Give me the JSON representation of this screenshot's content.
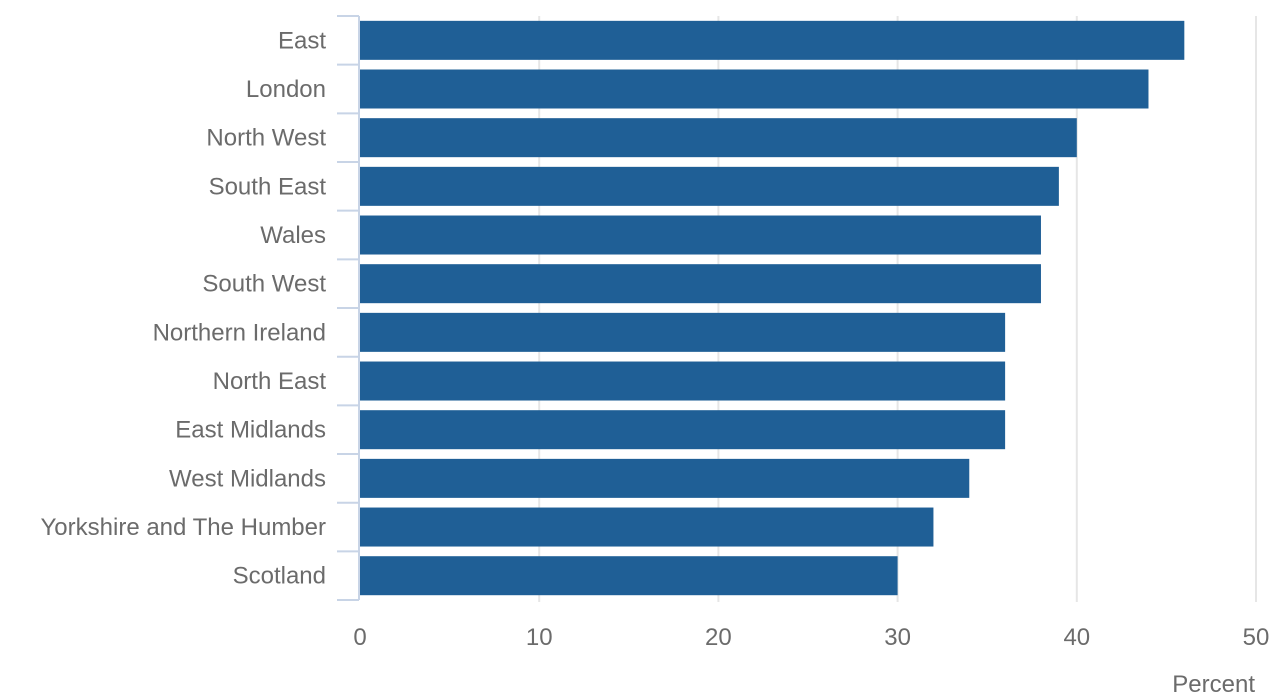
{
  "chart_data": {
    "type": "bar",
    "orientation": "horizontal",
    "categories": [
      "East",
      "London",
      "North West",
      "South East",
      "Wales",
      "South West",
      "Northern Ireland",
      "North East",
      "East Midlands",
      "West Midlands",
      "Yorkshire and The Humber",
      "Scotland"
    ],
    "values": [
      46,
      44,
      40,
      39,
      38,
      38,
      36,
      36,
      36,
      34,
      32,
      30
    ],
    "title": "",
    "xlabel": "Percent",
    "ylabel": "",
    "xlim": [
      0,
      50
    ],
    "xticks": [
      0,
      10,
      20,
      30,
      40,
      50
    ],
    "grid": "vertical",
    "bar_color": "#1f5f96"
  }
}
